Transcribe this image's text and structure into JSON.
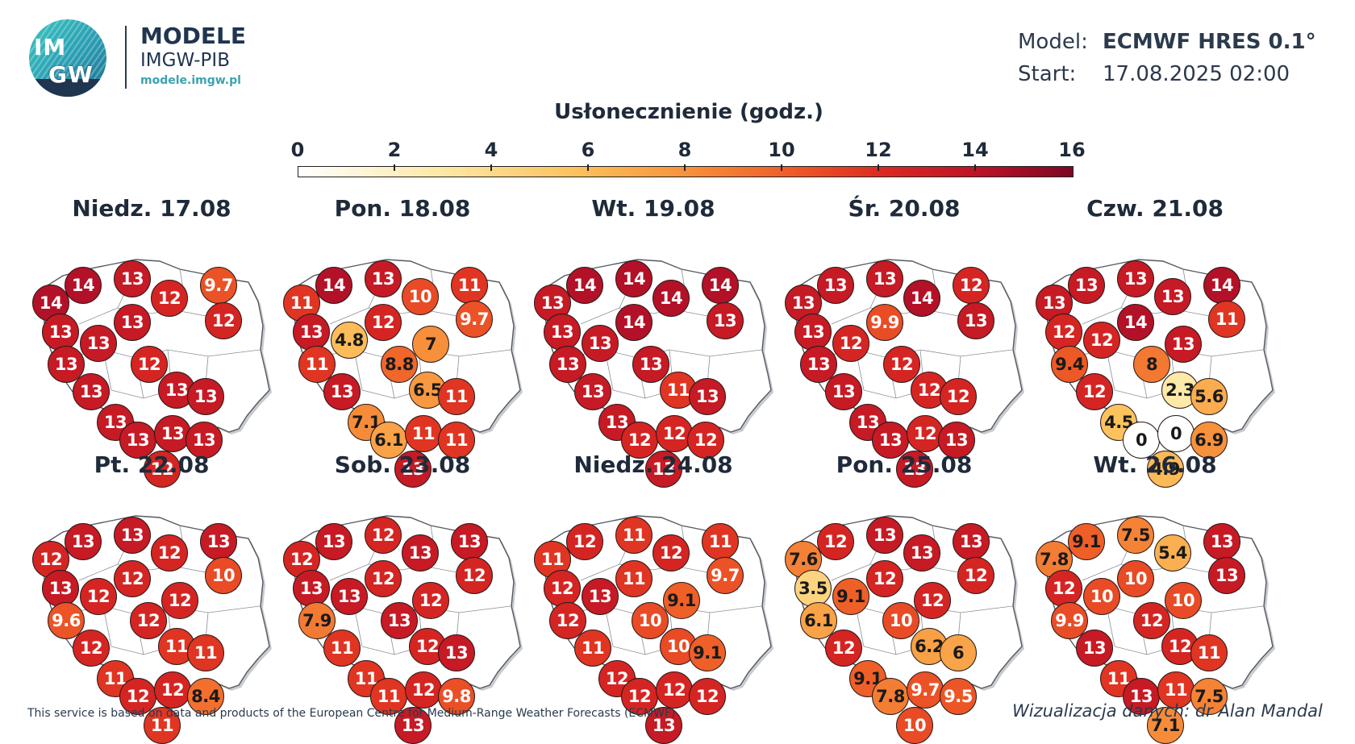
{
  "header": {
    "logo_top": "IM",
    "logo_bottom": "GW",
    "brand_main": "MODELE",
    "brand_sub": "IMGW-PIB",
    "brand_url": "modele.imgw.pl",
    "model_label": "Model:",
    "model_value": "ECMWF HRES 0.1°",
    "start_label": "Start:",
    "start_value": "17.08.2025 02:00"
  },
  "legend": {
    "title": "Usłonecznienie (godz.)",
    "ticks": [
      "0",
      "2",
      "4",
      "6",
      "8",
      "10",
      "12",
      "14",
      "16"
    ],
    "range": [
      0,
      16
    ],
    "colors": [
      "#ffffff",
      "#fde9a8",
      "#fcc15c",
      "#f7923c",
      "#ef5e28",
      "#dd2b21",
      "#bb1227",
      "#7c0823"
    ]
  },
  "panels": [
    {
      "title": "Niedz. 17.08",
      "values": [
        "14",
        "14",
        "13",
        "12",
        "9.7",
        "13",
        "13",
        "13",
        "12",
        "13",
        "13",
        "12",
        "13",
        "13",
        "13",
        "13",
        "13",
        "13",
        "12"
      ]
    },
    {
      "title": "Pon. 18.08",
      "values": [
        "11",
        "14",
        "13",
        "10",
        "11",
        "9.7",
        "13",
        "4.8",
        "12",
        "7",
        "11",
        "8.8",
        "13",
        "6.5",
        "11",
        "7.1",
        "6.1",
        "11",
        "11",
        "13"
      ]
    },
    {
      "title": "Wt. 19.08",
      "values": [
        "13",
        "14",
        "14",
        "14",
        "14",
        "13",
        "13",
        "14",
        "13",
        "13",
        "13",
        "13",
        "11",
        "13",
        "13",
        "12",
        "12",
        "12",
        "13"
      ]
    },
    {
      "title": "Śr. 20.08",
      "values": [
        "13",
        "13",
        "13",
        "14",
        "12",
        "13",
        "12",
        "9.9",
        "13",
        "13",
        "13",
        "12",
        "12",
        "12",
        "13",
        "13",
        "12",
        "13",
        "13"
      ]
    },
    {
      "title": "Czw. 21.08",
      "values": [
        "13",
        "13",
        "13",
        "13",
        "14",
        "11",
        "12",
        "12",
        "14",
        "13",
        "9.4",
        "8",
        "12",
        "2.3",
        "5.6",
        "4.5",
        "0",
        "0",
        "6.9",
        "4.9"
      ]
    },
    {
      "title": "Pt. 22.08",
      "values": [
        "12",
        "13",
        "13",
        "12",
        "13",
        "10",
        "13",
        "12",
        "12",
        "12",
        "9.6",
        "12",
        "12",
        "11",
        "11",
        "11",
        "12",
        "12",
        "8.4",
        "11"
      ]
    },
    {
      "title": "Sob. 23.08",
      "values": [
        "12",
        "13",
        "12",
        "13",
        "13",
        "12",
        "13",
        "13",
        "12",
        "12",
        "7.9",
        "13",
        "11",
        "12",
        "13",
        "11",
        "11",
        "12",
        "9.8",
        "13"
      ]
    },
    {
      "title": "Niedz. 24.08",
      "values": [
        "11",
        "12",
        "11",
        "12",
        "11",
        "9.7",
        "12",
        "13",
        "11",
        "9.1",
        "12",
        "10",
        "11",
        "10",
        "9.1",
        "12",
        "12",
        "12",
        "12",
        "13"
      ]
    },
    {
      "title": "Pon. 25.08",
      "values": [
        "7.6",
        "12",
        "13",
        "13",
        "13",
        "12",
        "3.5",
        "9.1",
        "12",
        "12",
        "6.1",
        "10",
        "12",
        "6.2",
        "6",
        "9.1",
        "7.8",
        "9.7",
        "9.5",
        "10"
      ]
    },
    {
      "title": "Wt. 26.08",
      "values": [
        "7.8",
        "9.1",
        "7.5",
        "5.4",
        "13",
        "13",
        "12",
        "10",
        "10",
        "10",
        "9.9",
        "12",
        "13",
        "12",
        "11",
        "11",
        "13",
        "11",
        "7.5",
        "7.1"
      ]
    }
  ],
  "footer": {
    "left": "This service is based on data and products of the European Centre for Medium-Range Weather Forecasts (ECMWF)",
    "right": "Wizualizacja danych: dr Alan Mandal"
  }
}
